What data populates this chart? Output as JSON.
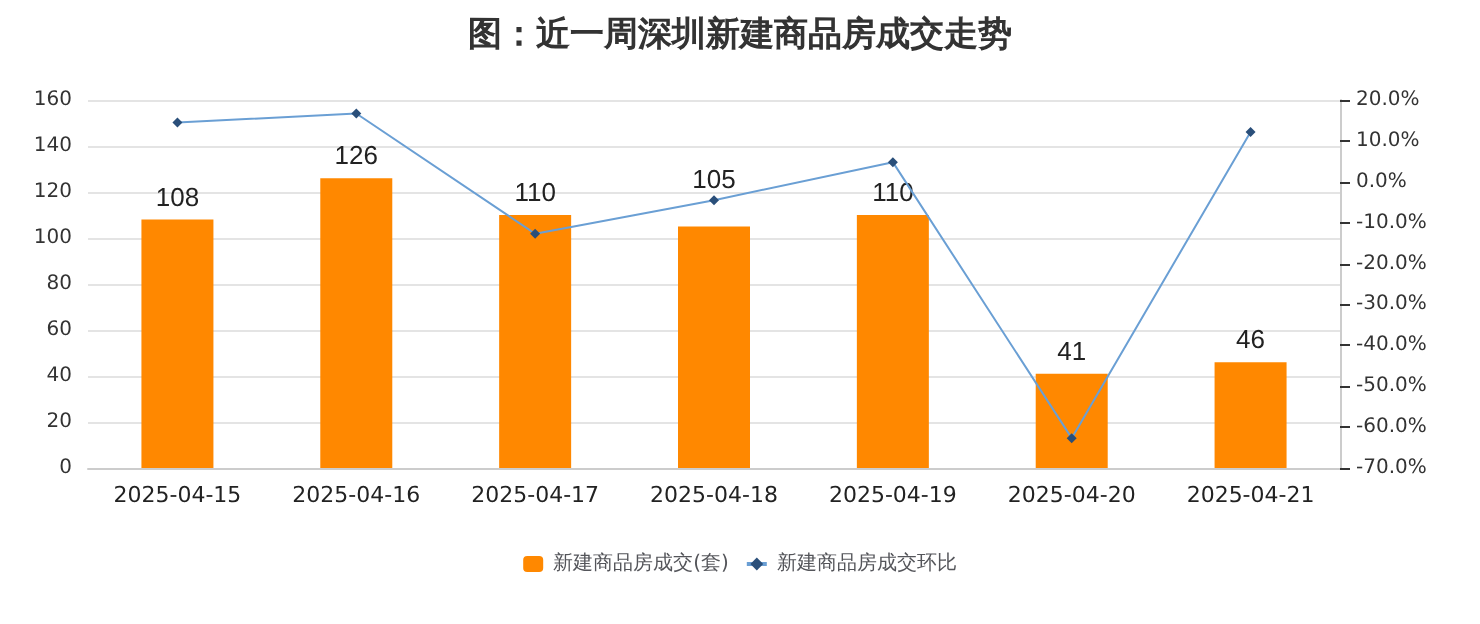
{
  "chart_data": {
    "type": "bar",
    "title": "图：近一周深圳新建商品房成交走势",
    "categories": [
      "2025-04-15",
      "2025-04-16",
      "2025-04-17",
      "2025-04-18",
      "2025-04-19",
      "2025-04-20",
      "2025-04-21"
    ],
    "series": [
      {
        "name": "新建商品房成交(套)",
        "color": "#ff8800",
        "values": [
          108,
          126,
          110,
          105,
          110,
          41,
          46
        ]
      },
      {
        "name": "新建商品房成交环比",
        "type": "line",
        "axis": "y2",
        "color": "#6a9fd4",
        "marker": "diamond",
        "values": [
          14.5,
          16.7,
          -12.7,
          -4.5,
          4.8,
          -62.7,
          12.2
        ]
      }
    ],
    "ylim": [
      0,
      160
    ],
    "yticks": [
      0,
      20,
      40,
      60,
      80,
      100,
      120,
      140,
      160
    ],
    "y2lim": [
      -70,
      20
    ],
    "y2ticks": [
      {
        "value": -70,
        "label": "-70.0%"
      },
      {
        "value": -60,
        "label": "-60.0%"
      },
      {
        "value": -50,
        "label": "-50.0%"
      },
      {
        "value": -40,
        "label": "-40.0%"
      },
      {
        "value": -30,
        "label": "-30.0%"
      },
      {
        "value": -20,
        "label": "-20.0%"
      },
      {
        "value": -10,
        "label": "-10.0%"
      },
      {
        "value": 0,
        "label": "0.0%"
      },
      {
        "value": 10,
        "label": "10.0%"
      },
      {
        "value": 20,
        "label": "20.0%"
      }
    ],
    "value_labels": [
      "108",
      "126",
      "110",
      "105",
      "110",
      "41",
      "46"
    ],
    "grid": "y",
    "legend": "bottom"
  }
}
